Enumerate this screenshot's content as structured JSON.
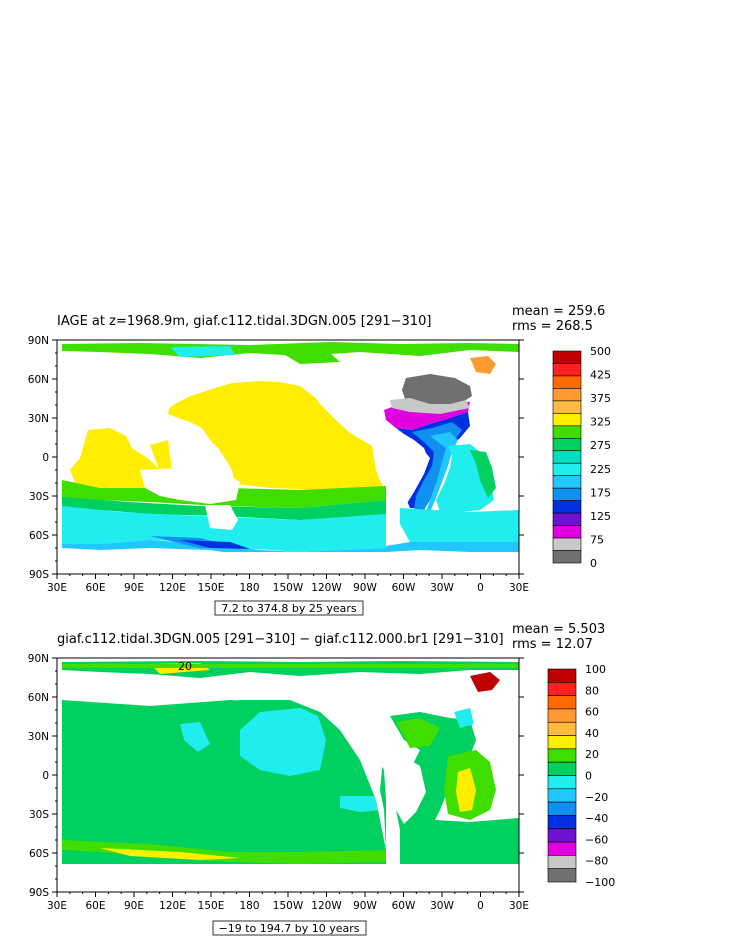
{
  "chart_data": [
    {
      "type": "heatmap",
      "title": "IAGE at z=1968.9m, giaf.c112.tidal.3DGN.005 [291−310]",
      "mean_text": "mean = 259.6",
      "rms_text": "rms = 268.5",
      "contour_note": "7.2 to 374.8 by 25 years",
      "x_ticks": [
        "30E",
        "60E",
        "90E",
        "120E",
        "150E",
        "180",
        "150W",
        "120W",
        "90W",
        "60W",
        "30W",
        "0",
        "30E"
      ],
      "y_ticks": [
        "90N",
        "60N",
        "30N",
        "0",
        "30S",
        "60S",
        "90S"
      ],
      "colorbar_labels": [
        "500",
        "425",
        "375",
        "325",
        "275",
        "225",
        "175",
        "125",
        "75",
        "0"
      ],
      "colorbar_colors": [
        "#c00000",
        "#ff2020",
        "#ff6a00",
        "#ff9a30",
        "#ffbb40",
        "#ffee00",
        "#40dd00",
        "#00d060",
        "#00e0c0",
        "#20eeee",
        "#20c8ff",
        "#1090f0",
        "#0030e0",
        "#7010d0",
        "#e000e0",
        "#c8c8c8",
        "#707070"
      ]
    },
    {
      "type": "heatmap",
      "title": "giaf.c112.tidal.3DGN.005 [291−310] − giaf.c112.000.br1 [291−310]",
      "mean_text": "mean = 5.503",
      "rms_text": "rms = 12.07",
      "contour_note": "−19 to 194.7 by 10 years",
      "x_ticks": [
        "30E",
        "60E",
        "90E",
        "120E",
        "150E",
        "180",
        "150W",
        "120W",
        "90W",
        "60W",
        "30W",
        "0",
        "30E"
      ],
      "y_ticks": [
        "90N",
        "60N",
        "30N",
        "0",
        "30S",
        "60S",
        "90S"
      ],
      "colorbar_labels": [
        "100",
        "80",
        "60",
        "40",
        "20",
        "0",
        "−20",
        "−40",
        "−60",
        "−80",
        "−100"
      ],
      "colorbar_colors": [
        "#c00000",
        "#ff2020",
        "#ff6a00",
        "#ff9a30",
        "#ffbb40",
        "#ffee00",
        "#40dd00",
        "#00d060",
        "#20eeee",
        "#20c8ff",
        "#1090f0",
        "#0030e0",
        "#7010d0",
        "#e000e0",
        "#c8c8c8",
        "#707070"
      ],
      "contour_label": "20"
    }
  ]
}
